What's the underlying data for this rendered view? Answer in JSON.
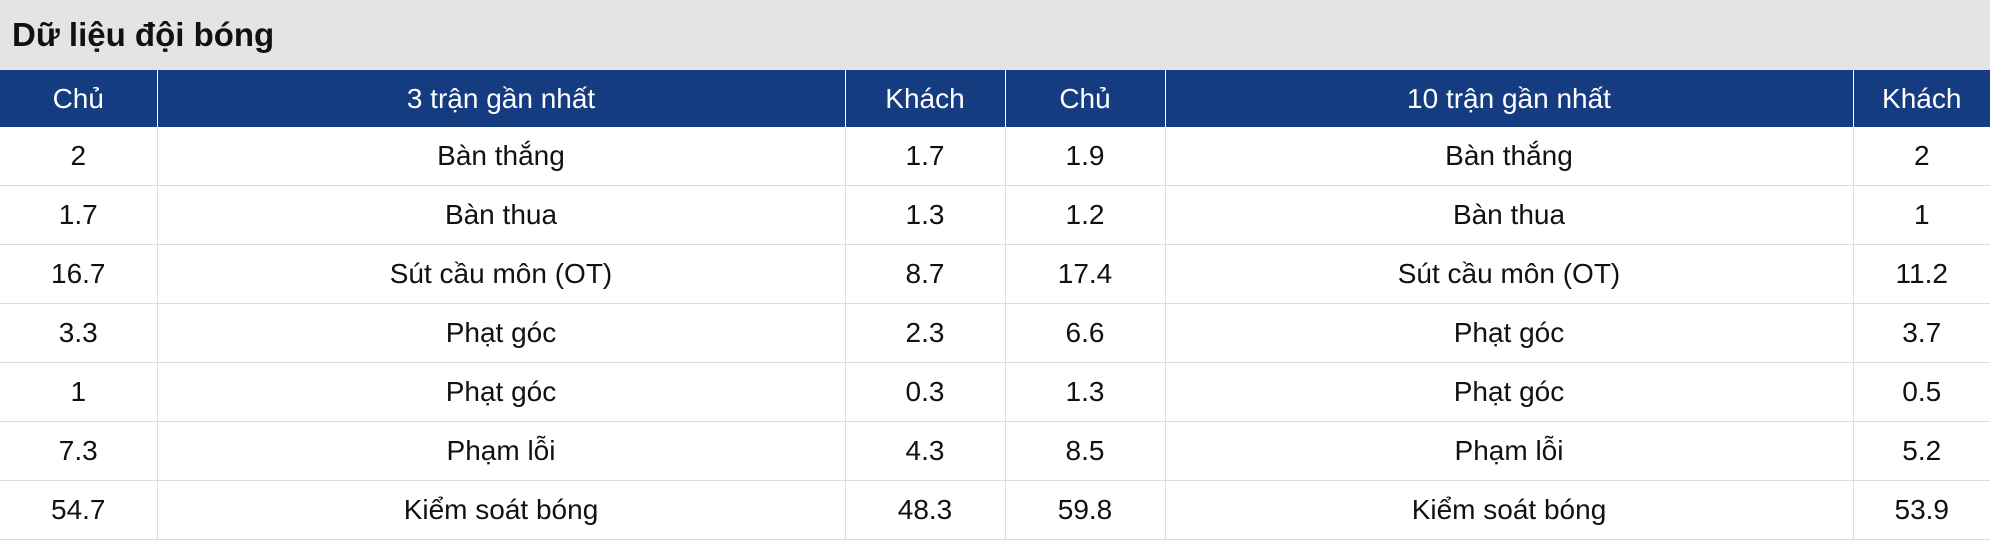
{
  "header": {
    "title": "Dữ liệu đội bóng"
  },
  "table": {
    "columns": [
      "Chủ",
      "3 trận gần nhất",
      "Khách",
      "Chủ",
      "10 trận gần nhất",
      "Khách"
    ],
    "rows": [
      [
        2,
        "Bàn thắng",
        1.7,
        1.9,
        "Bàn thắng",
        2
      ],
      [
        1.7,
        "Bàn thua",
        1.3,
        1.2,
        "Bàn thua",
        1
      ],
      [
        16.7,
        "Sút cầu môn (OT)",
        8.7,
        17.4,
        "Sút cầu môn (OT)",
        11.2
      ],
      [
        3.3,
        "Phạt góc",
        2.3,
        6.6,
        "Phạt góc",
        3.7
      ],
      [
        1,
        "Phạt góc",
        0.3,
        1.3,
        "Phạt góc",
        0.5
      ],
      [
        7.3,
        "Phạm lỗi",
        4.3,
        8.5,
        "Phạm lỗi",
        5.2
      ],
      [
        54.7,
        "Kiểm soát bóng",
        48.3,
        59.8,
        "Kiểm soát bóng",
        53.9
      ]
    ]
  }
}
